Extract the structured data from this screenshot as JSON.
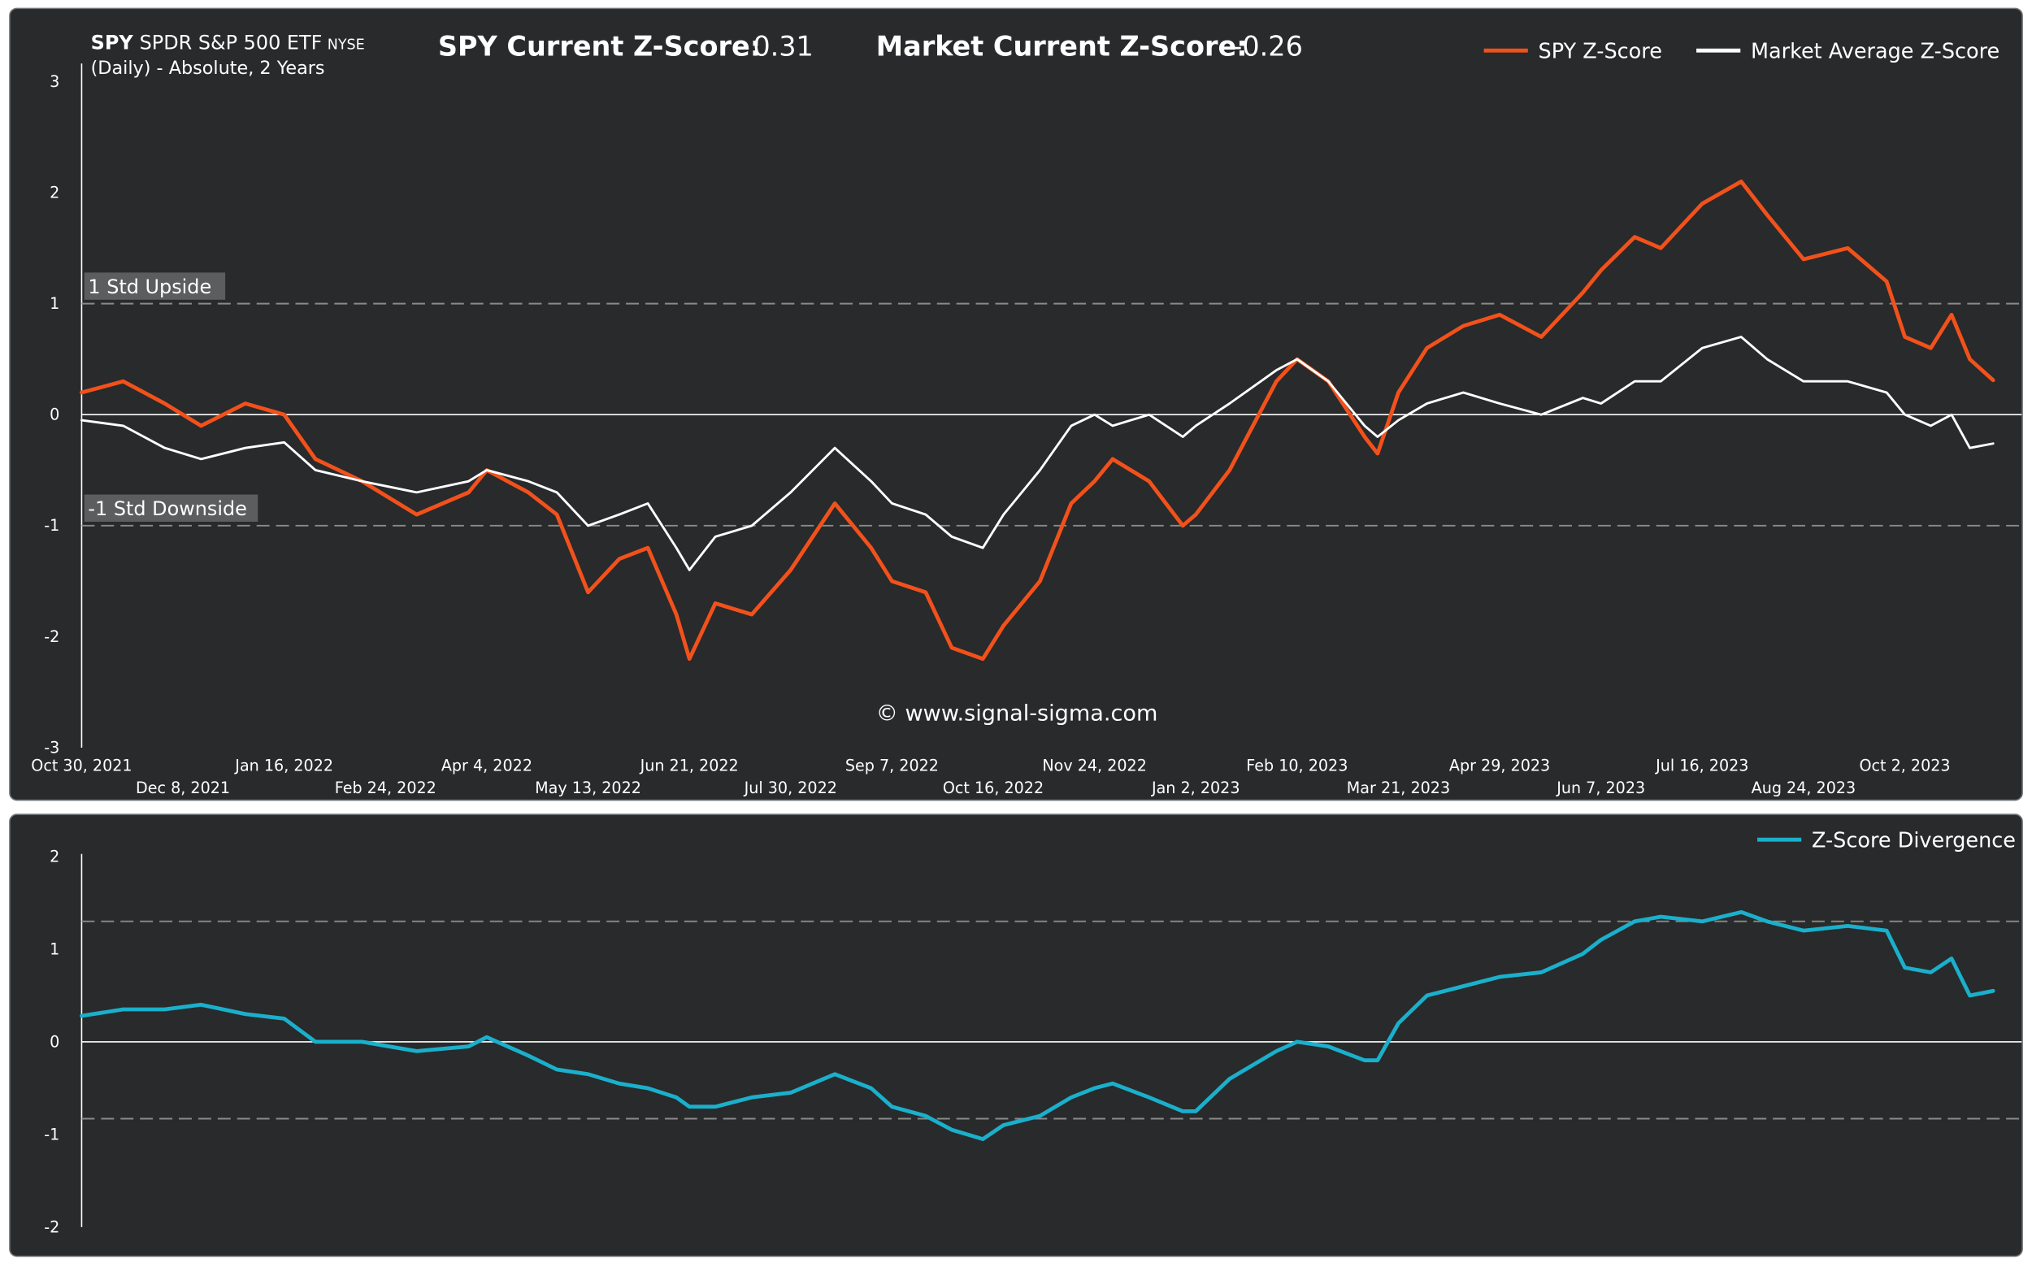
{
  "header": {
    "ticker": "SPY",
    "name": "SPDR S&P 500 ETF",
    "exchange": "NYSE",
    "subtitle": "(Daily) - Absolute, 2 Years",
    "spy_label": "SPY Current Z-Score:",
    "spy_value": "0.31",
    "market_label": "Market Current Z-Score:",
    "market_value": "-0.26",
    "watermark": "© www.signal-sigma.com"
  },
  "colors": {
    "background": "#282a2b",
    "spy": "#f2511b",
    "market": "#ffffff",
    "divergence": "#1ab0cc",
    "grid_dash": "#8a8a8a"
  },
  "chart_data": [
    {
      "type": "line",
      "ylim": [
        -3,
        3
      ],
      "y_ticks": [
        "3",
        "2",
        "1",
        "0",
        "-1",
        "-2",
        "-3"
      ],
      "x_tick_labels": [
        "Oct 30, 2021",
        "Dec 8, 2021",
        "Jan 16, 2022",
        "Feb 24, 2022",
        "Apr 4, 2022",
        "May 13, 2022",
        "Jun 21, 2022",
        "Jul 30, 2022",
        "Sep 7, 2022",
        "Oct 16, 2022",
        "Nov 24, 2022",
        "Jan 2, 2023",
        "Feb 10, 2023",
        "Mar 21, 2023",
        "Apr 29, 2023",
        "Jun 7, 2023",
        "Jul 16, 2023",
        "Aug 24, 2023",
        "Oct 2, 2023"
      ],
      "x_range": [
        "Oct 30, 2021",
        "Nov 5, 2023"
      ],
      "reference_lines": [
        {
          "value": 1,
          "label": "1 Std Upside",
          "style": "dashed"
        },
        {
          "value": 0,
          "label": "",
          "style": "solid"
        },
        {
          "value": -1,
          "label": "-1 Std Downside",
          "style": "dashed"
        }
      ],
      "legend_position": "top-right",
      "series": [
        {
          "name": "SPY Z-Score",
          "x": [
            "Oct 30, 2021",
            "Nov 15, 2021",
            "Dec 1, 2021",
            "Dec 15, 2021",
            "Jan 1, 2022",
            "Jan 16, 2022",
            "Jan 28, 2022",
            "Feb 15, 2022",
            "Mar 8, 2022",
            "Mar 28, 2022",
            "Apr 4, 2022",
            "Apr 20, 2022",
            "May 1, 2022",
            "May 13, 2022",
            "May 25, 2022",
            "Jun 5, 2022",
            "Jun 16, 2022",
            "Jun 21, 2022",
            "Jul 1, 2022",
            "Jul 15, 2022",
            "Jul 30, 2022",
            "Aug 16, 2022",
            "Aug 30, 2022",
            "Sep 7, 2022",
            "Sep 20, 2022",
            "Sep 30, 2022",
            "Oct 12, 2022",
            "Oct 20, 2022",
            "Nov 3, 2022",
            "Nov 15, 2022",
            "Nov 24, 2022",
            "Dec 1, 2022",
            "Dec 15, 2022",
            "Dec 28, 2022",
            "Jan 2, 2023",
            "Jan 15, 2023",
            "Feb 2, 2023",
            "Feb 10, 2023",
            "Feb 22, 2023",
            "Mar 8, 2023",
            "Mar 13, 2023",
            "Mar 21, 2023",
            "Apr 1, 2023",
            "Apr 15, 2023",
            "Apr 29, 2023",
            "May 15, 2023",
            "May 31, 2023",
            "Jun 7, 2023",
            "Jun 20, 2023",
            "Jun 30, 2023",
            "Jul 16, 2023",
            "Jul 31, 2023",
            "Aug 10, 2023",
            "Aug 24, 2023",
            "Sep 10, 2023",
            "Sep 25, 2023",
            "Oct 2, 2023",
            "Oct 12, 2023",
            "Oct 20, 2023",
            "Oct 27, 2023",
            "Nov 5, 2023"
          ],
          "values": [
            0.2,
            0.3,
            0.1,
            -0.1,
            0.1,
            0.0,
            -0.4,
            -0.6,
            -0.9,
            -0.7,
            -0.5,
            -0.7,
            -0.9,
            -1.6,
            -1.3,
            -1.2,
            -1.8,
            -2.2,
            -1.7,
            -1.8,
            -1.4,
            -0.8,
            -1.2,
            -1.5,
            -1.6,
            -2.1,
            -2.2,
            -1.9,
            -1.5,
            -0.8,
            -0.6,
            -0.4,
            -0.6,
            -1.0,
            -0.9,
            -0.5,
            0.3,
            0.5,
            0.3,
            -0.2,
            -0.35,
            0.2,
            0.6,
            0.8,
            0.9,
            0.7,
            1.1,
            1.3,
            1.6,
            1.5,
            1.9,
            2.1,
            1.8,
            1.4,
            1.5,
            1.2,
            0.7,
            0.6,
            0.9,
            0.5,
            0.31
          ]
        },
        {
          "name": "Market Average Z-Score",
          "x": [
            "Oct 30, 2021",
            "Nov 15, 2021",
            "Dec 1, 2021",
            "Dec 15, 2021",
            "Jan 1, 2022",
            "Jan 16, 2022",
            "Jan 28, 2022",
            "Feb 15, 2022",
            "Mar 8, 2022",
            "Mar 28, 2022",
            "Apr 4, 2022",
            "Apr 20, 2022",
            "May 1, 2022",
            "May 13, 2022",
            "May 25, 2022",
            "Jun 5, 2022",
            "Jun 16, 2022",
            "Jun 21, 2022",
            "Jul 1, 2022",
            "Jul 15, 2022",
            "Jul 30, 2022",
            "Aug 16, 2022",
            "Aug 30, 2022",
            "Sep 7, 2022",
            "Sep 20, 2022",
            "Sep 30, 2022",
            "Oct 12, 2022",
            "Oct 20, 2022",
            "Nov 3, 2022",
            "Nov 15, 2022",
            "Nov 24, 2022",
            "Dec 1, 2022",
            "Dec 15, 2022",
            "Dec 28, 2022",
            "Jan 2, 2023",
            "Jan 15, 2023",
            "Feb 2, 2023",
            "Feb 10, 2023",
            "Feb 22, 2023",
            "Mar 8, 2023",
            "Mar 13, 2023",
            "Mar 21, 2023",
            "Apr 1, 2023",
            "Apr 15, 2023",
            "Apr 29, 2023",
            "May 15, 2023",
            "May 31, 2023",
            "Jun 7, 2023",
            "Jun 20, 2023",
            "Jun 30, 2023",
            "Jul 16, 2023",
            "Jul 31, 2023",
            "Aug 10, 2023",
            "Aug 24, 2023",
            "Sep 10, 2023",
            "Sep 25, 2023",
            "Oct 2, 2023",
            "Oct 12, 2023",
            "Oct 20, 2023",
            "Oct 27, 2023",
            "Nov 5, 2023"
          ],
          "values": [
            -0.05,
            -0.1,
            -0.3,
            -0.4,
            -0.3,
            -0.25,
            -0.5,
            -0.6,
            -0.7,
            -0.6,
            -0.5,
            -0.6,
            -0.7,
            -1.0,
            -0.9,
            -0.8,
            -1.2,
            -1.4,
            -1.1,
            -1.0,
            -0.7,
            -0.3,
            -0.6,
            -0.8,
            -0.9,
            -1.1,
            -1.2,
            -0.9,
            -0.5,
            -0.1,
            0.0,
            -0.1,
            0.0,
            -0.2,
            -0.1,
            0.1,
            0.4,
            0.5,
            0.3,
            -0.1,
            -0.2,
            -0.05,
            0.1,
            0.2,
            0.1,
            0.0,
            0.15,
            0.1,
            0.3,
            0.3,
            0.6,
            0.7,
            0.5,
            0.3,
            0.3,
            0.2,
            0.0,
            -0.1,
            0.0,
            -0.3,
            -0.26
          ]
        }
      ]
    },
    {
      "type": "line",
      "ylim": [
        -2,
        2
      ],
      "y_ticks": [
        "2",
        "1",
        "0",
        "-1",
        "-2"
      ],
      "x_range": [
        "Oct 30, 2021",
        "Nov 5, 2023"
      ],
      "reference_lines": [
        {
          "value": 1.3,
          "label": "",
          "style": "dashed"
        },
        {
          "value": 0,
          "label": "",
          "style": "solid"
        },
        {
          "value": -0.83,
          "label": "",
          "style": "dashed"
        }
      ],
      "legend_position": "top-right",
      "series": [
        {
          "name": "Z-Score Divergence",
          "x": [
            "Oct 30, 2021",
            "Nov 15, 2021",
            "Dec 1, 2021",
            "Dec 15, 2021",
            "Jan 1, 2022",
            "Jan 16, 2022",
            "Jan 28, 2022",
            "Feb 15, 2022",
            "Mar 8, 2022",
            "Mar 28, 2022",
            "Apr 4, 2022",
            "Apr 20, 2022",
            "May 1, 2022",
            "May 13, 2022",
            "May 25, 2022",
            "Jun 5, 2022",
            "Jun 16, 2022",
            "Jun 21, 2022",
            "Jul 1, 2022",
            "Jul 15, 2022",
            "Jul 30, 2022",
            "Aug 16, 2022",
            "Aug 30, 2022",
            "Sep 7, 2022",
            "Sep 20, 2022",
            "Sep 30, 2022",
            "Oct 12, 2022",
            "Oct 20, 2022",
            "Nov 3, 2022",
            "Nov 15, 2022",
            "Nov 24, 2022",
            "Dec 1, 2022",
            "Dec 15, 2022",
            "Dec 28, 2022",
            "Jan 2, 2023",
            "Jan 15, 2023",
            "Feb 2, 2023",
            "Feb 10, 2023",
            "Feb 22, 2023",
            "Mar 8, 2023",
            "Mar 13, 2023",
            "Mar 21, 2023",
            "Apr 1, 2023",
            "Apr 15, 2023",
            "Apr 29, 2023",
            "May 15, 2023",
            "May 31, 2023",
            "Jun 7, 2023",
            "Jun 20, 2023",
            "Jun 30, 2023",
            "Jul 16, 2023",
            "Jul 31, 2023",
            "Aug 10, 2023",
            "Aug 24, 2023",
            "Sep 10, 2023",
            "Sep 25, 2023",
            "Oct 2, 2023",
            "Oct 12, 2023",
            "Oct 20, 2023",
            "Oct 27, 2023",
            "Nov 5, 2023"
          ],
          "values": [
            0.28,
            0.35,
            0.35,
            0.4,
            0.3,
            0.25,
            0.0,
            0.0,
            -0.1,
            -0.05,
            0.05,
            -0.15,
            -0.3,
            -0.35,
            -0.45,
            -0.5,
            -0.6,
            -0.7,
            -0.7,
            -0.6,
            -0.55,
            -0.35,
            -0.5,
            -0.7,
            -0.8,
            -0.95,
            -1.05,
            -0.9,
            -0.8,
            -0.6,
            -0.5,
            -0.45,
            -0.6,
            -0.75,
            -0.75,
            -0.4,
            -0.1,
            0.0,
            -0.05,
            -0.2,
            -0.2,
            0.2,
            0.5,
            0.6,
            0.7,
            0.75,
            0.95,
            1.1,
            1.3,
            1.35,
            1.3,
            1.4,
            1.3,
            1.2,
            1.25,
            1.2,
            0.8,
            0.75,
            0.9,
            0.5,
            0.55
          ]
        }
      ]
    }
  ]
}
